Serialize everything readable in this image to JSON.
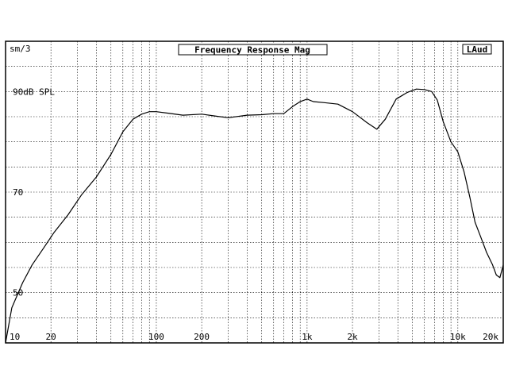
{
  "chart_data": {
    "type": "line",
    "title": "Frequency Response Mag",
    "corner_label": "sm/3",
    "channel_label": "LAud",
    "y_unit_label": "90dB SPL",
    "x_scale": "log",
    "xlim": [
      10,
      20000
    ],
    "ylim": [
      40,
      100
    ],
    "grid": true,
    "x_ticks": [
      {
        "value": 10,
        "label": "10"
      },
      {
        "value": 20,
        "label": "20"
      },
      {
        "value": 100,
        "label": "100"
      },
      {
        "value": 200,
        "label": "200"
      },
      {
        "value": 1000,
        "label": "1k"
      },
      {
        "value": 2000,
        "label": "2k"
      },
      {
        "value": 10000,
        "label": "10k"
      },
      {
        "value": 20000,
        "label": "20k"
      }
    ],
    "y_ticks": [
      {
        "value": 90,
        "label": "90dB SPL"
      },
      {
        "value": 70,
        "label": "70"
      },
      {
        "value": 50,
        "label": "50"
      }
    ],
    "series": [
      {
        "x": [
          10,
          11,
          13,
          15,
          18,
          21,
          26,
          32,
          40,
          50,
          60,
          70,
          80,
          90,
          100,
          120,
          150,
          200,
          250,
          300,
          400,
          500,
          600,
          700,
          800,
          900,
          1000,
          1100,
          1300,
          1600,
          2000,
          2500,
          2900,
          3300,
          3900,
          4600,
          5300,
          6000,
          6700,
          7300,
          8000,
          9000,
          10000,
          11000,
          12000,
          13000,
          14000,
          15500,
          17000,
          18000,
          19000,
          20000
        ],
        "y": [
          40,
          47,
          52,
          55.5,
          59,
          62,
          65.5,
          69.5,
          73,
          77.5,
          82,
          84.5,
          85.5,
          86,
          86,
          85.7,
          85.3,
          85.5,
          85.1,
          84.8,
          85.3,
          85.4,
          85.6,
          85.6,
          87,
          88,
          88.5,
          88,
          87.8,
          87.5,
          86,
          83.8,
          82.5,
          84.5,
          88.5,
          89.8,
          90.5,
          90.4,
          90,
          88.3,
          84,
          80,
          78,
          74,
          69,
          64,
          61.5,
          58,
          55.5,
          53.5,
          53,
          55.5
        ]
      }
    ]
  }
}
